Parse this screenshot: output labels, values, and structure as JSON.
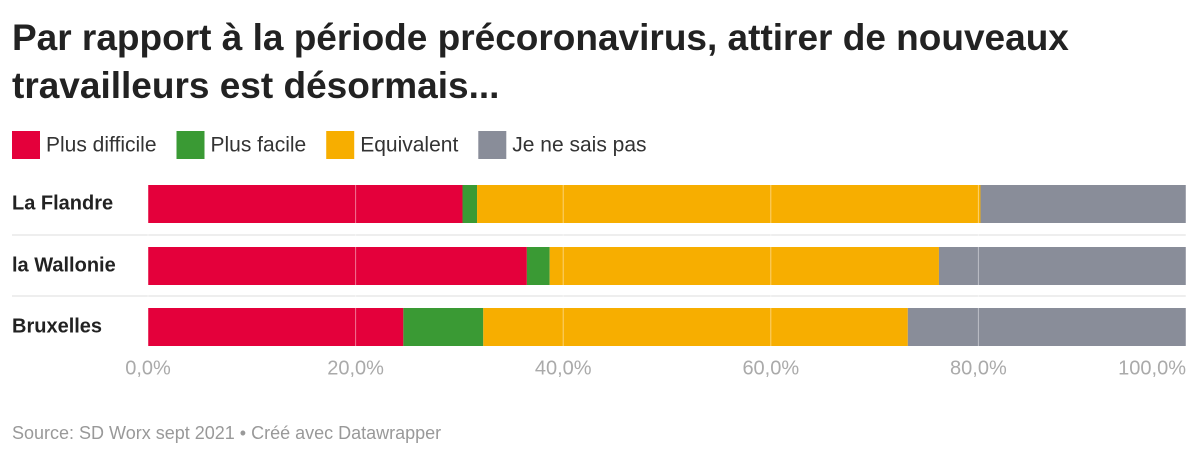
{
  "chart_data": {
    "type": "stacked-bar-horizontal",
    "title": [
      "Par rapport à la période précoronavirus, attirer de nouveaux",
      "travailleurs est désormais..."
    ],
    "categories": [
      "La Flandre",
      "la Wallonie",
      "Bruxelles"
    ],
    "series": [
      {
        "name": "Plus difficile",
        "color": "#e4003b",
        "values": [
          30.3,
          36.5,
          24.6
        ]
      },
      {
        "name": "Plus facile",
        "color": "#3a9a34",
        "values": [
          1.4,
          2.2,
          7.7
        ]
      },
      {
        "name": "Equivalent",
        "color": "#f7ae00",
        "values": [
          48.5,
          37.5,
          40.9
        ]
      },
      {
        "name": "Je ne sais pas",
        "color": "#898d99",
        "values": [
          19.8,
          23.8,
          26.8
        ]
      }
    ],
    "xlim": [
      0,
      100
    ],
    "xticks": [
      {
        "value": 0,
        "label": "0,0%"
      },
      {
        "value": 20,
        "label": "20,0%"
      },
      {
        "value": 40,
        "label": "40,0%"
      },
      {
        "value": 60,
        "label": "60,0%"
      },
      {
        "value": 80,
        "label": "80,0%"
      },
      {
        "value": 100,
        "label": "100,0%"
      }
    ],
    "grid": true,
    "source": "Source: SD Worx sept 2021 • Créé avec Datawrapper"
  }
}
